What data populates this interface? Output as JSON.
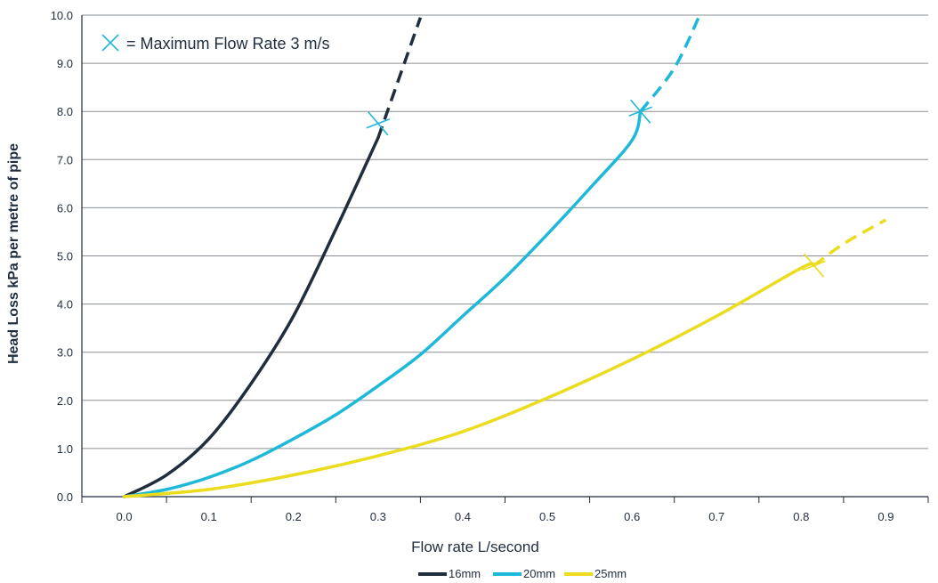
{
  "chart_data": {
    "type": "line",
    "title": "",
    "xlabel": "Flow rate L/second",
    "ylabel": "Head Loss kPa per metre of pipe",
    "xlim": [
      -0.05,
      0.95
    ],
    "ylim": [
      0,
      10
    ],
    "x_ticks": [
      0.0,
      0.1,
      0.2,
      0.3,
      0.4,
      0.5,
      0.6,
      0.7,
      0.8,
      0.9
    ],
    "x_tick_labels": [
      "0.0",
      "0.1",
      "0.2",
      "0.3",
      "0.4",
      "0.5",
      "0.6",
      "0.7",
      "0.8",
      "0.9"
    ],
    "y_ticks": [
      0,
      1,
      2,
      3,
      4,
      5,
      6,
      7,
      8,
      9,
      10
    ],
    "y_tick_labels": [
      "0.0",
      "1.0",
      "2.0",
      "3.0",
      "4.0",
      "5.0",
      "6.0",
      "7.0",
      "8.0",
      "9.0",
      "10.0"
    ],
    "grid": "horizontal",
    "legend_position": "bottom",
    "annotation": {
      "text": "= Maximum Flow Rate 3 m/s",
      "marker_color": "#1EB8D8",
      "position": "top-left"
    },
    "series": [
      {
        "name": "16mm",
        "color": "#1F2D3D",
        "x": [
          0.0,
          0.05,
          0.1,
          0.15,
          0.2,
          0.25,
          0.3,
          0.35
        ],
        "y": [
          0.0,
          0.45,
          1.2,
          2.35,
          3.75,
          5.55,
          7.45,
          9.95
        ],
        "max_flow": [
          0.3,
          7.75
        ],
        "dashed_from_x": 0.3
      },
      {
        "name": "20mm",
        "color": "#1EB8D8",
        "x": [
          0.0,
          0.05,
          0.1,
          0.15,
          0.2,
          0.25,
          0.3,
          0.35,
          0.4,
          0.45,
          0.5,
          0.55,
          0.6,
          0.65,
          0.68
        ],
        "y": [
          0.0,
          0.15,
          0.4,
          0.75,
          1.2,
          1.7,
          2.3,
          2.95,
          3.75,
          4.55,
          5.45,
          6.4,
          7.4,
          8.9,
          10.0
        ],
        "max_flow": [
          0.61,
          8.0
        ],
        "dashed_from_x": 0.61
      },
      {
        "name": "25mm",
        "color": "#EBDC1E",
        "x": [
          0.0,
          0.1,
          0.2,
          0.3,
          0.4,
          0.5,
          0.6,
          0.7,
          0.8,
          0.85,
          0.9
        ],
        "y": [
          0.0,
          0.15,
          0.45,
          0.85,
          1.35,
          2.05,
          2.85,
          3.75,
          4.75,
          5.25,
          5.75
        ],
        "max_flow": [
          0.815,
          4.8
        ],
        "dashed_from_x": 0.815
      }
    ]
  }
}
